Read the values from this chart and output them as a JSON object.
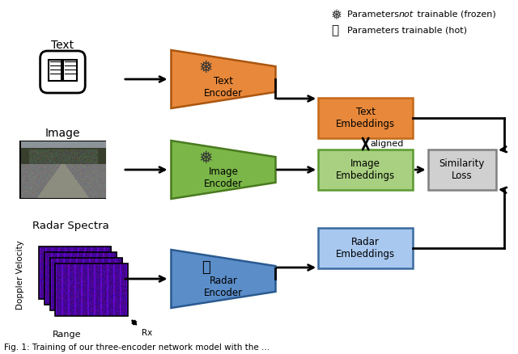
{
  "bg_color": "#ffffff",
  "text_enc_color": "#E8883A",
  "text_enc_border": "#AA5510",
  "image_enc_color": "#7AB648",
  "image_enc_border": "#4A7A20",
  "radar_enc_color": "#5B8DC8",
  "radar_enc_border": "#2A5A90",
  "text_emb_color": "#E8883A",
  "text_emb_border": "#C46A1A",
  "image_emb_color": "#A8D080",
  "image_emb_border": "#5A9A30",
  "radar_emb_color": "#A8C8F0",
  "radar_emb_border": "#3A6AA0",
  "sim_color": "#D0D0D0",
  "sim_border": "#808080",
  "caption": "Fig. 1: Training of our three-encoder network model with the ...",
  "legend_frozen": "Parameters  not  trainable (frozen)",
  "legend_hot": "Parameters trainable (hot)"
}
